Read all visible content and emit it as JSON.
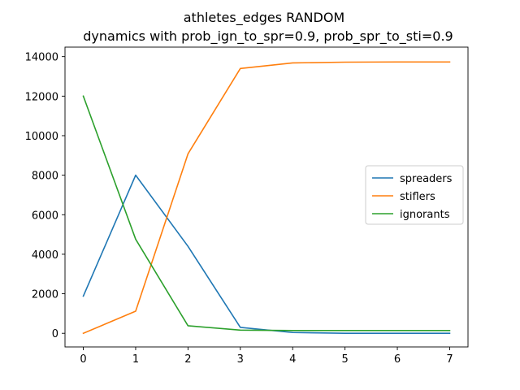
{
  "chart_data": {
    "type": "line",
    "title": "athletes_edges RANDOM",
    "subtitle": "dynamics with prob_ign_to_spr=0.9, prob_spr_to_sti=0.9",
    "xlabel": "",
    "ylabel": "",
    "x": [
      0,
      1,
      2,
      3,
      4,
      5,
      6,
      7
    ],
    "x_ticks": [
      "0",
      "1",
      "2",
      "3",
      "4",
      "5",
      "6",
      "7"
    ],
    "y_ticks": [
      "0",
      "2000",
      "4000",
      "6000",
      "8000",
      "10000",
      "12000",
      "14000"
    ],
    "xlim": [
      -0.35,
      7.35
    ],
    "ylim": [
      -690,
      14480
    ],
    "grid": false,
    "legend_position": "center-right",
    "series": [
      {
        "name": "spreaders",
        "color": "#1f77b4",
        "values": [
          1880,
          8000,
          4400,
          300,
          40,
          0,
          0,
          0
        ]
      },
      {
        "name": "stiflers",
        "color": "#ff7f0e",
        "values": [
          0,
          1120,
          9080,
          13400,
          13680,
          13720,
          13730,
          13730
        ]
      },
      {
        "name": "ignorants",
        "color": "#2ca02c",
        "values": [
          12000,
          4760,
          380,
          160,
          140,
          140,
          140,
          140
        ]
      }
    ]
  }
}
